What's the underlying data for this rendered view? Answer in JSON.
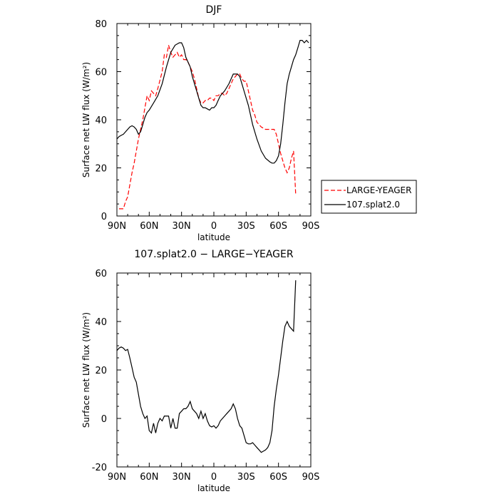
{
  "chart_data": [
    {
      "type": "line",
      "title": "DJF",
      "xlabel": "latitude",
      "ylabel": "Surface net LW flux (W/m²)",
      "xlim": [
        90,
        -90
      ],
      "ylim": [
        0,
        80
      ],
      "xticks": [
        {
          "value": 90,
          "label": "90N"
        },
        {
          "value": 60,
          "label": "60N"
        },
        {
          "value": 30,
          "label": "30N"
        },
        {
          "value": 0,
          "label": "0"
        },
        {
          "value": -30,
          "label": "30S"
        },
        {
          "value": -60,
          "label": "60S"
        },
        {
          "value": -90,
          "label": "90S"
        }
      ],
      "yticks": [
        0,
        20,
        40,
        60,
        80
      ],
      "legend_position": "right",
      "series": [
        {
          "name": "LARGE-YEAGER",
          "color": "#ff0000",
          "dash": "dashed",
          "x": [
            88,
            84,
            82,
            80,
            76,
            74,
            70,
            66,
            64,
            62,
            60,
            58,
            56,
            54,
            52,
            48,
            46,
            44,
            42,
            40,
            38,
            36,
            34,
            32,
            30,
            28,
            26,
            24,
            22,
            20,
            18,
            16,
            14,
            12,
            10,
            8,
            6,
            4,
            2,
            0,
            -2,
            -4,
            -6,
            -8,
            -10,
            -12,
            -14,
            -16,
            -18,
            -20,
            -22,
            -24,
            -26,
            -28,
            -30,
            -32,
            -34,
            -36,
            -38,
            -40,
            -44,
            -48,
            -52,
            -56,
            -58,
            -60,
            -62,
            -64,
            -66,
            -68,
            -70,
            -72,
            -74,
            -76
          ],
          "y": [
            3,
            3,
            6,
            8,
            18,
            22,
            32,
            40,
            45,
            50,
            48,
            52,
            51,
            50,
            53,
            60,
            67,
            66,
            71,
            68,
            66,
            67,
            68,
            66,
            67,
            65,
            65,
            64,
            62,
            60,
            57,
            53,
            49,
            47,
            47,
            48,
            48,
            49,
            49,
            48,
            50,
            50,
            51,
            51,
            50,
            51,
            53,
            55,
            57,
            58,
            59,
            59,
            57,
            56,
            56,
            52,
            48,
            44,
            42,
            39,
            37,
            36,
            36,
            36,
            34,
            30,
            26,
            23,
            20,
            18,
            20,
            24,
            27,
            9
          ]
        },
        {
          "name": "107.splat2.0",
          "color": "#000000",
          "dash": "solid",
          "x": [
            90,
            88,
            86,
            84,
            82,
            80,
            78,
            76,
            74,
            72,
            70,
            68,
            66,
            64,
            62,
            60,
            56,
            52,
            48,
            44,
            40,
            36,
            32,
            30,
            28,
            26,
            24,
            22,
            20,
            18,
            16,
            14,
            12,
            10,
            8,
            6,
            4,
            2,
            0,
            -2,
            -4,
            -6,
            -10,
            -14,
            -18,
            -22,
            -24,
            -26,
            -28,
            -30,
            -32,
            -34,
            -36,
            -40,
            -44,
            -48,
            -52,
            -54,
            -56,
            -58,
            -60,
            -62,
            -64,
            -66,
            -68,
            -70,
            -72,
            -74,
            -76,
            -78,
            -80,
            -82,
            -84,
            -86,
            -88
          ],
          "y": [
            32,
            33,
            33.5,
            34,
            35,
            36,
            37,
            37.5,
            37,
            36,
            34,
            35,
            38,
            41,
            43,
            44,
            47,
            50,
            55,
            62,
            68,
            71,
            72,
            72,
            70,
            66,
            64,
            62,
            58,
            55,
            52,
            49,
            46,
            45,
            45,
            44.5,
            44,
            45,
            45,
            46,
            48,
            50,
            52,
            55,
            59,
            59,
            58,
            55,
            52,
            49,
            46,
            42,
            38,
            32,
            27,
            24,
            22.5,
            22,
            22,
            23,
            25,
            30,
            38,
            47,
            55,
            59,
            62,
            65,
            67,
            70,
            73,
            73,
            72,
            73,
            72
          ]
        }
      ]
    },
    {
      "type": "line",
      "title": "107.splat2.0 − LARGE−YEAGER",
      "xlabel": "latitude",
      "ylabel": "Surface net LW flux (W/m²)",
      "xlim": [
        90,
        -90
      ],
      "ylim": [
        -20,
        60
      ],
      "xticks": [
        {
          "value": 90,
          "label": "90N"
        },
        {
          "value": 60,
          "label": "60N"
        },
        {
          "value": 30,
          "label": "30N"
        },
        {
          "value": 0,
          "label": "0"
        },
        {
          "value": -30,
          "label": "30S"
        },
        {
          "value": -60,
          "label": "60S"
        },
        {
          "value": -90,
          "label": "90S"
        }
      ],
      "yticks": [
        -20,
        0,
        20,
        40,
        60
      ],
      "series": [
        {
          "name": "",
          "color": "#000000",
          "dash": "solid",
          "x": [
            90,
            88,
            86,
            84,
            82,
            80,
            78,
            76,
            74,
            72,
            70,
            68,
            66,
            64,
            62,
            60,
            58,
            56,
            54,
            52,
            50,
            48,
            46,
            44,
            42,
            40,
            38,
            36,
            34,
            32,
            30,
            28,
            26,
            24,
            22,
            20,
            18,
            16,
            14,
            12,
            10,
            8,
            6,
            4,
            2,
            0,
            -2,
            -4,
            -6,
            -8,
            -10,
            -12,
            -14,
            -16,
            -18,
            -20,
            -22,
            -24,
            -26,
            -28,
            -30,
            -32,
            -34,
            -36,
            -38,
            -40,
            -42,
            -44,
            -46,
            -48,
            -50,
            -52,
            -54,
            -56,
            -58,
            -60,
            -62,
            -64,
            -66,
            -68,
            -70,
            -72,
            -74,
            -76
          ],
          "y": [
            28,
            29,
            29.5,
            29,
            28,
            28.5,
            25,
            21,
            17,
            15,
            10,
            5,
            2,
            0,
            1,
            -5,
            -6,
            -2,
            -6,
            -2,
            0,
            -1,
            1,
            1,
            1,
            -4,
            0,
            -4,
            -4,
            2,
            3,
            4,
            4,
            5,
            7,
            4,
            3,
            2,
            0,
            3,
            0,
            2,
            -1,
            -3,
            -3.5,
            -3,
            -4,
            -3,
            -1,
            0,
            1,
            2,
            3,
            4,
            6,
            4,
            0,
            -3,
            -4,
            -7,
            -10,
            -10.5,
            -10.5,
            -10,
            -11,
            -12,
            -13,
            -14,
            -13.5,
            -13,
            -12,
            -10,
            -5,
            5,
            12,
            18,
            25,
            32,
            38,
            40,
            38,
            37,
            36,
            57
          ]
        }
      ]
    }
  ]
}
